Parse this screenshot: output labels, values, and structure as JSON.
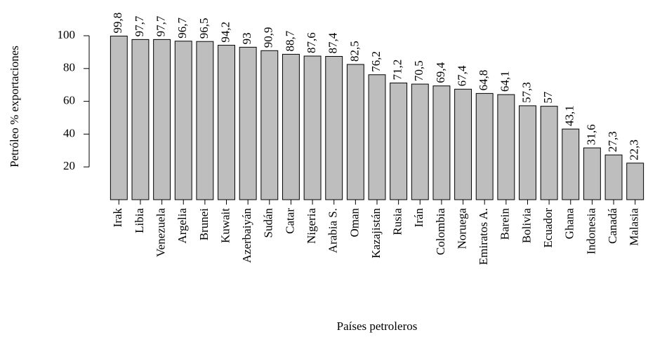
{
  "chart_data": {
    "type": "bar",
    "x_label": "Países petroleros",
    "y_label": "Petróleo % exportaciones",
    "categories": [
      "Irak",
      "Libia",
      "Venezuela",
      "Argelia",
      "Brunei",
      "Kuwait",
      "Azerbaiyán",
      "Sudán",
      "Catar",
      "Nigeria",
      "Arabia S.",
      "Oman",
      "Kazajistán",
      "Rusia",
      "Irán",
      "Colombia",
      "Noruega",
      "Emiratos A.",
      "Barein",
      "Bolivia",
      "Ecuador",
      "Ghana",
      "Indonesia",
      "Canadá",
      "Malasia"
    ],
    "values": [
      99.8,
      97.7,
      97.7,
      96.7,
      96.5,
      94.2,
      93,
      90.9,
      88.7,
      87.6,
      87.4,
      82.5,
      76.2,
      71.2,
      70.5,
      69.4,
      67.4,
      64.8,
      64.1,
      57.3,
      57,
      43.1,
      31.6,
      27.3,
      22.3
    ],
    "value_labels": [
      "99,8",
      "97,7",
      "97,7",
      "96,7",
      "96,5",
      "94,2",
      "93",
      "90,9",
      "88,7",
      "87,6",
      "87,4",
      "82,5",
      "76,2",
      "71,2",
      "70,5",
      "69,4",
      "67,4",
      "64,8",
      "64,1",
      "57,3",
      "57",
      "43,1",
      "31,6",
      "27,3",
      "22,3"
    ],
    "color": "#bebebe",
    "ylim": [
      0,
      100
    ],
    "yticks": [
      20,
      40,
      60,
      80,
      100
    ],
    "grid": false
  }
}
